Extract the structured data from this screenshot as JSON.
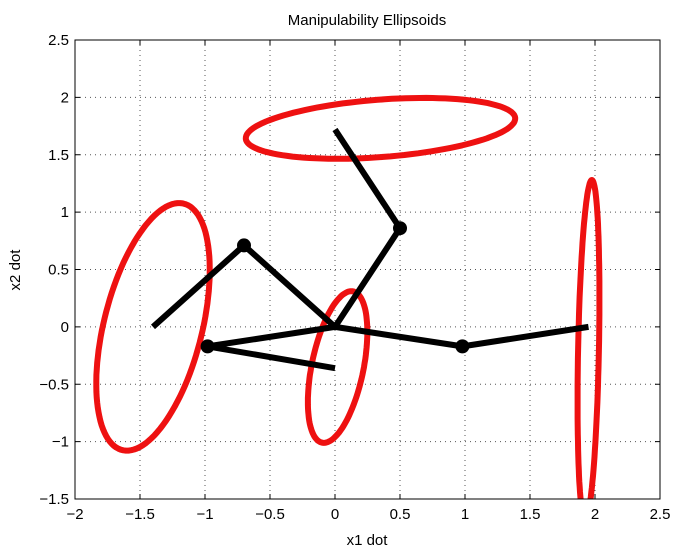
{
  "chart_data": {
    "type": "line",
    "title": "Manipulability Ellipsoids",
    "xlabel": "x1 dot",
    "ylabel": "x2 dot",
    "xlim": [
      -2,
      2.5
    ],
    "ylim": [
      -1.5,
      2.5
    ],
    "xticks": [
      -2,
      -1.5,
      -1,
      -0.5,
      0,
      0.5,
      1,
      1.5,
      2,
      2.5
    ],
    "yticks": [
      -1.5,
      -1,
      -0.5,
      0,
      0.5,
      1,
      1.5,
      2,
      2.5
    ],
    "xtick_labels": [
      "−2",
      "−1.5",
      "−1",
      "−0.5",
      "0",
      "0.5",
      "1",
      "1.5",
      "2",
      "2.5"
    ],
    "ytick_labels": [
      "−1.5",
      "−1",
      "−0.5",
      "0",
      "0.5",
      "1",
      "1.5",
      "2",
      "2.5"
    ],
    "grid": true,
    "grid_style": "dotted",
    "colors": {
      "arm": "#000000",
      "ellipse": "#ee1111",
      "grid": "#b0b0b0"
    },
    "arms": [
      {
        "points": [
          [
            0,
            1.72
          ],
          [
            0.5,
            0.86
          ],
          [
            0,
            0
          ]
        ]
      },
      {
        "points": [
          [
            -1.4,
            0
          ],
          [
            -0.7,
            0.71
          ],
          [
            0,
            0
          ]
        ]
      },
      {
        "points": [
          [
            0,
            -0.36
          ],
          [
            -0.98,
            -0.17
          ],
          [
            0,
            0
          ]
        ]
      },
      {
        "points": [
          [
            1.95,
            0
          ],
          [
            0.98,
            -0.17
          ],
          [
            0,
            0
          ]
        ]
      }
    ],
    "joints": [
      [
        0.5,
        0.86
      ],
      [
        -0.7,
        0.71
      ],
      [
        -0.98,
        -0.17
      ],
      [
        0.98,
        -0.17
      ]
    ],
    "ellipses": [
      {
        "center": [
          0.35,
          1.73
        ],
        "semi_axes": [
          1.04,
          0.25
        ],
        "angle_deg": 5
      },
      {
        "center": [
          -1.4,
          0
        ],
        "semi_axes": [
          1.1,
          0.38
        ],
        "angle_deg": 78
      },
      {
        "center": [
          0.02,
          -0.35
        ],
        "semi_axes": [
          0.67,
          0.2
        ],
        "angle_deg": 80
      },
      {
        "center": [
          1.95,
          -0.2
        ],
        "semi_axes": [
          1.48,
          0.08
        ],
        "angle_deg": 89
      }
    ]
  }
}
